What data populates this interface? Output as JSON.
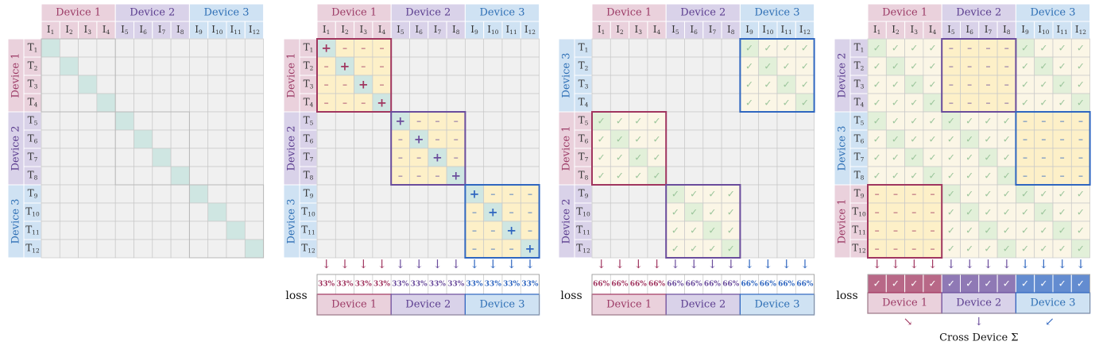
{
  "colors": {
    "d1_fill": "#ead1dc",
    "d1_text": "#9c3b66",
    "d1_border": "#a0355f",
    "d2_fill": "#d9d2e9",
    "d2_text": "#5b3d8f",
    "d2_border": "#6a4c9c",
    "d3_fill": "#cfe2f3",
    "d3_text": "#2e6fb5",
    "d3_border": "#2f66c0",
    "cell": "#f0f0f0",
    "cell_line": "#c8c8c8",
    "pos": "#cfe6e2",
    "neg": "#fdf0c8",
    "check": "#fbf6e6",
    "check_diag": "#e2f0d9"
  },
  "devices": [
    "Device 1",
    "Device 2",
    "Device 3"
  ],
  "image_labels": [
    "I1",
    "I2",
    "I3",
    "I4",
    "I5",
    "I6",
    "I7",
    "I8",
    "I9",
    "I10",
    "I11",
    "I12"
  ],
  "text_labels": [
    "T1",
    "T2",
    "T3",
    "T4",
    "T5",
    "T6",
    "T7",
    "T8",
    "T9",
    "T10",
    "T11",
    "T12"
  ],
  "symbols": {
    "pos": "+",
    "neg": "–",
    "check": "✓",
    "arrow": "↓"
  },
  "panel1": {
    "rows": [
      "Device 1",
      "Device 2",
      "Device 3"
    ]
  },
  "panel2": {
    "rows": [
      "Device 1",
      "Device 2",
      "Device 3"
    ],
    "loss_label": "loss",
    "loss_values": [
      "33%",
      "33%",
      "33%",
      "33%",
      "33%",
      "33%",
      "33%",
      "33%",
      "33%",
      "33%",
      "33%",
      "33%"
    ]
  },
  "panel3": {
    "rows": [
      "Device 3",
      "Device 1",
      "Device 2"
    ],
    "loss_label": "loss",
    "loss_values": [
      "66%",
      "66%",
      "66%",
      "66%",
      "66%",
      "66%",
      "66%",
      "66%",
      "66%",
      "66%",
      "66%",
      "66%"
    ]
  },
  "panel4": {
    "rows": [
      "Device 2",
      "Device 3",
      "Device 1"
    ],
    "loss_label": "loss",
    "cross_label": "Cross Device Σ"
  }
}
